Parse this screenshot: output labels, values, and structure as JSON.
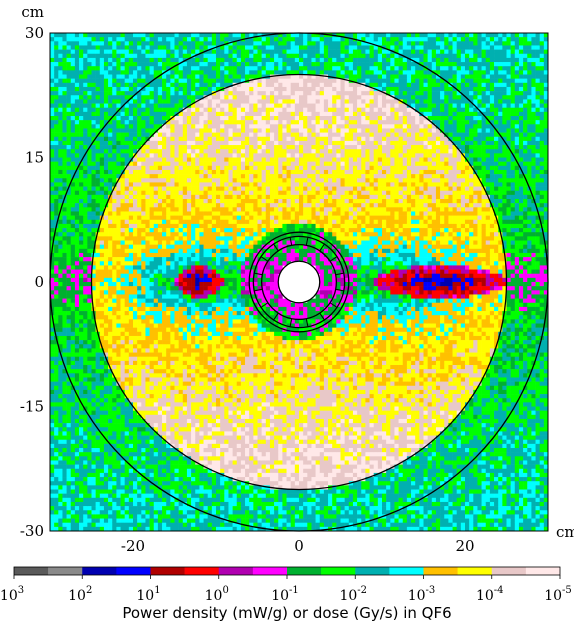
{
  "chart_data": {
    "type": "heatmap",
    "title": "",
    "x_unit": "cm",
    "y_unit": "cm",
    "xlim": [
      -30,
      30
    ],
    "ylim": [
      -30,
      30
    ],
    "x_ticks": [
      {
        "value": -20,
        "label": "-20"
      },
      {
        "value": 0,
        "label": "0"
      },
      {
        "value": 20,
        "label": "20"
      }
    ],
    "y_ticks": [
      {
        "value": 30,
        "label": "30"
      },
      {
        "value": 15,
        "label": "15"
      },
      {
        "value": 0,
        "label": "0"
      },
      {
        "value": -15,
        "label": "-15"
      },
      {
        "value": -30,
        "label": "-30"
      }
    ],
    "circles_cm": [
      2.5,
      4.5,
      5.5,
      6.0,
      25.0,
      30.0
    ],
    "colorbar": {
      "label": "Power density (mW/g) or dose (Gy/s) in QF6",
      "scale": "log",
      "range": [
        1000,
        1e-05
      ],
      "ticks": [
        {
          "base": "10",
          "exp": "3"
        },
        {
          "base": "10",
          "exp": "2"
        },
        {
          "base": "10",
          "exp": "1"
        },
        {
          "base": "10",
          "exp": "0"
        },
        {
          "base": "10",
          "exp": "-1"
        },
        {
          "base": "10",
          "exp": "-2"
        },
        {
          "base": "10",
          "exp": "-3"
        },
        {
          "base": "10",
          "exp": "-4"
        },
        {
          "base": "10",
          "exp": "-5"
        }
      ],
      "colors": [
        "#5a5a5a",
        "#8a8a8a",
        "#0000b0",
        "#0000ff",
        "#b00000",
        "#ff0000",
        "#b000b0",
        "#ff00ff",
        "#00b030",
        "#00ff00",
        "#00b0b0",
        "#00ffff",
        "#ffc000",
        "#ffff00",
        "#e8c8c8",
        "#ffe8e8"
      ]
    },
    "regions": {
      "hot_spots": [
        {
          "label": "left hot spot",
          "center_cm": [
            -12,
            0
          ],
          "peak_color_index": 2
        },
        {
          "label": "right hot spot",
          "center_cm": [
            17,
            0
          ],
          "peak_color_index": 2
        }
      ],
      "bore_radius_cm": 2.5,
      "yellow_band_cm": [
        22,
        25
      ]
    }
  }
}
